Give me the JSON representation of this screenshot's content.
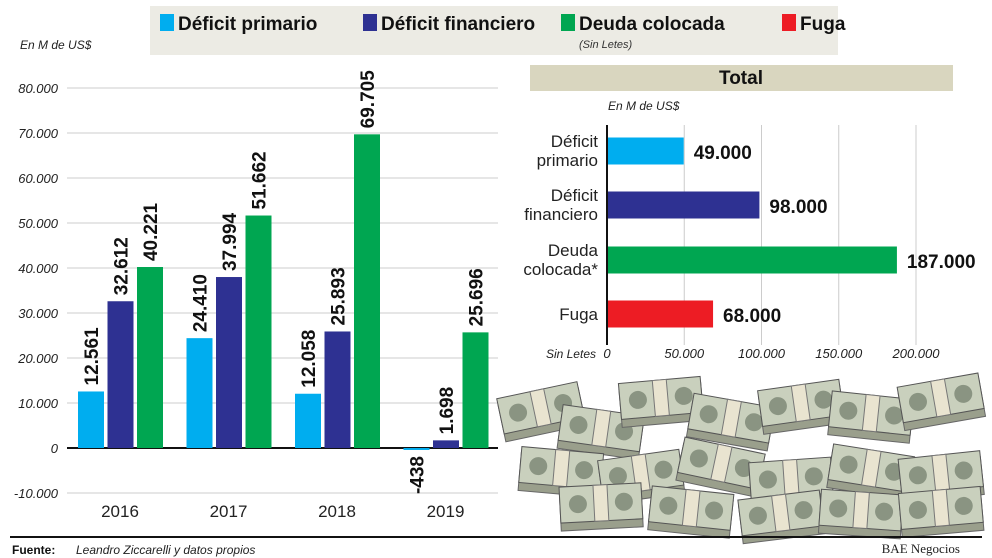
{
  "legend": {
    "items": [
      {
        "label": "Déficit primario",
        "color": "#00adef"
      },
      {
        "label": "Déficit financiero",
        "color": "#2e3192"
      },
      {
        "label": "Deuda colocada",
        "color": "#00a651",
        "note": "(Sin Letes)"
      },
      {
        "label": "Fuga",
        "color": "#ed1c24"
      }
    ]
  },
  "chart_data": [
    {
      "type": "bar",
      "ylabel": "En M de US$",
      "categories": [
        "2016",
        "2017",
        "2018",
        "2019"
      ],
      "ylim": [
        -10000,
        80000
      ],
      "yticks": [
        "-10.000",
        "0",
        "10.000",
        "20.000",
        "30.000",
        "40.000",
        "50.000",
        "60.000",
        "70.000",
        "80.000"
      ],
      "grid": true,
      "series": [
        {
          "name": "Déficit primario",
          "color": "#00adef",
          "values": [
            12561,
            24410,
            12058,
            -438
          ],
          "labels": [
            "12.561",
            "24.410",
            "12.058",
            "-438"
          ]
        },
        {
          "name": "Déficit financiero",
          "color": "#2e3192",
          "values": [
            32612,
            37994,
            25893,
            1698
          ],
          "labels": [
            "32.612",
            "37.994",
            "25.893",
            "1.698"
          ]
        },
        {
          "name": "Deuda colocada",
          "color": "#00a651",
          "values": [
            40221,
            51662,
            69705,
            25696
          ],
          "labels": [
            "40.221",
            "51.662",
            "69.705",
            "25.696"
          ]
        }
      ]
    },
    {
      "type": "bar",
      "orientation": "horizontal",
      "title": "Total",
      "xlabel": "En M de US$",
      "footnote": "Sin Letes",
      "xlim": [
        0,
        200000
      ],
      "xticks": [
        "0",
        "50.000",
        "100.000",
        "150.000",
        "200.000"
      ],
      "grid": true,
      "categories": [
        [
          "Déficit",
          "primario"
        ],
        [
          "Déficit",
          "financiero"
        ],
        [
          "Deuda",
          "colocada*"
        ],
        [
          "Fuga"
        ]
      ],
      "values": [
        49000,
        98000,
        187000,
        68000
      ],
      "labels": [
        "49.000",
        "98.000",
        "187.000",
        "68.000"
      ],
      "colors": [
        "#00adef",
        "#2e3192",
        "#00a651",
        "#ed1c24"
      ]
    }
  ],
  "footer": {
    "source_label": "Fuente:",
    "source_text": "Leandro Ziccarelli y datos propios",
    "brand": "BAE Negocios"
  }
}
